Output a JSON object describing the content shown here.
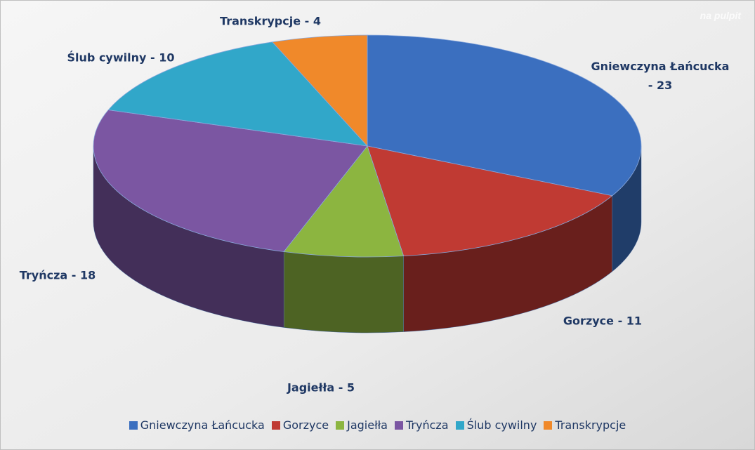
{
  "chart_data": {
    "type": "pie3d",
    "watermark": "na pulpit",
    "categories": [
      "Gniewczyna Łańcucka",
      "Gorzyce",
      "Jagiełła",
      "Tryńcza",
      "Ślub cywilny",
      "Transkrypcje"
    ],
    "values": [
      23,
      11,
      5,
      18,
      10,
      4
    ],
    "value_labels": [
      "Gniewczyna Łańcucka - 23",
      "Gorzyce - 11",
      "Jagiełła - 5",
      "Tryńcza - 18",
      "Ślub cywilny - 10",
      "Transkrypcje - 4"
    ],
    "colors": [
      "#3b6fbf",
      "#c03a33",
      "#8cb540",
      "#7b56a2",
      "#31a7c9",
      "#f0892a"
    ],
    "legend": "bottom"
  }
}
